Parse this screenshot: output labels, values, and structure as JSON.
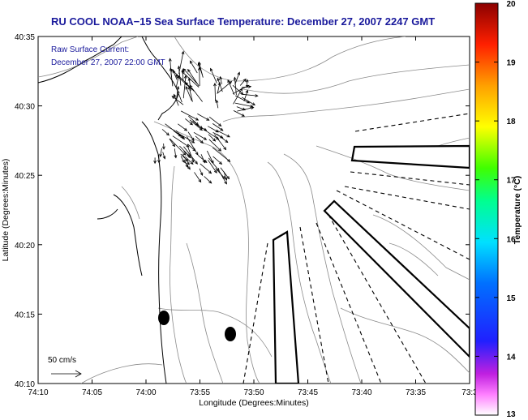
{
  "title": "RU COOL  NOAA−15  Sea Surface Temperature:  December 27, 2007 2247 GMT",
  "current_label_line1": "Raw Surface Current:",
  "current_label_line2": "December 27, 2007 22:00 GMT",
  "scale_label": "50 cm/s",
  "x_axis": {
    "label": "Longitude (Degrees:Minutes)",
    "ticks": [
      "74:10",
      "74:05",
      "74:00",
      "73:55",
      "73:50",
      "73:45",
      "73:40",
      "73:35",
      "73:3"
    ]
  },
  "y_axis": {
    "label": "Latitude (Degrees:Minutes)",
    "ticks": [
      "40:35",
      "40:30",
      "40:25",
      "40:20",
      "40:15",
      "40:10"
    ]
  },
  "colorbar": {
    "label": "Temperature (°C)",
    "ticks": [
      "20",
      "19",
      "18",
      "17",
      "16",
      "15",
      "14",
      "13"
    ],
    "range": [
      13,
      20
    ],
    "colors": [
      "#ff00ff",
      "#1414ff",
      "#00ffff",
      "#00ff00",
      "#ffff00",
      "#ff8000",
      "#ff0000",
      "#8b0000"
    ]
  },
  "colors": {
    "title_text": "#1a1a9c",
    "contour": "#8a8a8a",
    "coastline": "#000000"
  }
}
